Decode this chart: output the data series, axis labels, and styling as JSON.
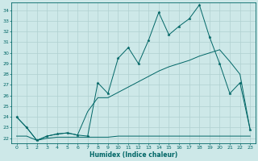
{
  "xlabel": "Humidex (Indice chaleur)",
  "bg_color": "#cde8e8",
  "line_color": "#006666",
  "grid_color": "#b0d0d0",
  "ylim": [
    21.5,
    34.7
  ],
  "xlim": [
    -0.5,
    23.5
  ],
  "yticks": [
    22,
    23,
    24,
    25,
    26,
    27,
    28,
    29,
    30,
    31,
    32,
    33,
    34
  ],
  "xticks": [
    0,
    1,
    2,
    3,
    4,
    5,
    6,
    7,
    8,
    9,
    10,
    11,
    12,
    13,
    14,
    15,
    16,
    17,
    18,
    19,
    20,
    21,
    22,
    23
  ],
  "s1_x": [
    0,
    1,
    2,
    3,
    4,
    5,
    6,
    7,
    8,
    9,
    10,
    11,
    12,
    13,
    14,
    15,
    16,
    17,
    18,
    19,
    20,
    21,
    22,
    23
  ],
  "s1_y": [
    24.0,
    23.0,
    21.8,
    22.2,
    22.4,
    22.5,
    22.3,
    22.2,
    27.2,
    26.2,
    29.5,
    30.5,
    29.0,
    31.2,
    33.8,
    31.7,
    32.5,
    33.2,
    34.5,
    31.5,
    29.0,
    26.2,
    27.2,
    22.8
  ],
  "s2_x": [
    0,
    1,
    2,
    3,
    4,
    5,
    6,
    7,
    8,
    9,
    10,
    11,
    12,
    13,
    14,
    15,
    16,
    17,
    18,
    19,
    20,
    21,
    22,
    23
  ],
  "s2_y": [
    24.0,
    23.0,
    21.8,
    22.2,
    22.4,
    22.5,
    22.3,
    24.5,
    25.8,
    25.8,
    26.3,
    26.8,
    27.3,
    27.8,
    28.3,
    28.7,
    29.0,
    29.3,
    29.7,
    30.0,
    30.3,
    29.2,
    28.0,
    22.8
  ],
  "s3_x": [
    0,
    1,
    2,
    3,
    4,
    5,
    6,
    7,
    8,
    9,
    10,
    11,
    12,
    13,
    14,
    15,
    16,
    17,
    18,
    19,
    20,
    21,
    22,
    23
  ],
  "s3_y": [
    22.2,
    22.2,
    21.8,
    22.0,
    22.1,
    22.1,
    22.1,
    22.1,
    22.1,
    22.1,
    22.2,
    22.2,
    22.2,
    22.2,
    22.2,
    22.2,
    22.2,
    22.2,
    22.2,
    22.2,
    22.2,
    22.2,
    22.2,
    22.2
  ]
}
